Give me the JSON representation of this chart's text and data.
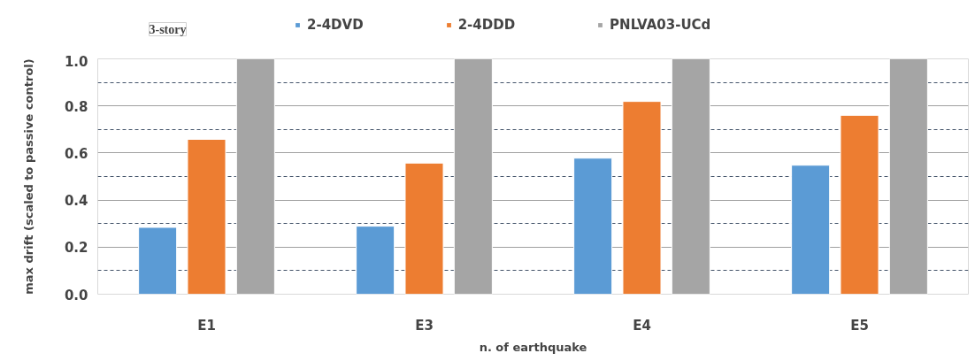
{
  "chart_data": {
    "type": "bar",
    "xlabel": "n. of earthquake",
    "ylabel": "max drift (scaled to passive control)",
    "annotations": [
      "3-story"
    ],
    "categories": [
      "E1",
      "E3",
      "E4",
      "E5"
    ],
    "series": [
      {
        "name": "2-4DVD",
        "color": "#5b9bd5",
        "values": [
          0.284,
          0.289,
          0.578,
          0.548
        ]
      },
      {
        "name": "2-4DDD",
        "color": "#ed7d31",
        "values": [
          0.658,
          0.557,
          0.819,
          0.76
        ]
      },
      {
        "name": "PNLVA03-UCd",
        "color": "#a5a5a5",
        "values": [
          1.0,
          1.0,
          1.0,
          1.0
        ]
      }
    ],
    "ylim": [
      0,
      1.0
    ],
    "yticks": [
      "0.0",
      0.2,
      0.4,
      0.6,
      0.8,
      "1.0"
    ],
    "grid": "y",
    "legend": "top"
  }
}
